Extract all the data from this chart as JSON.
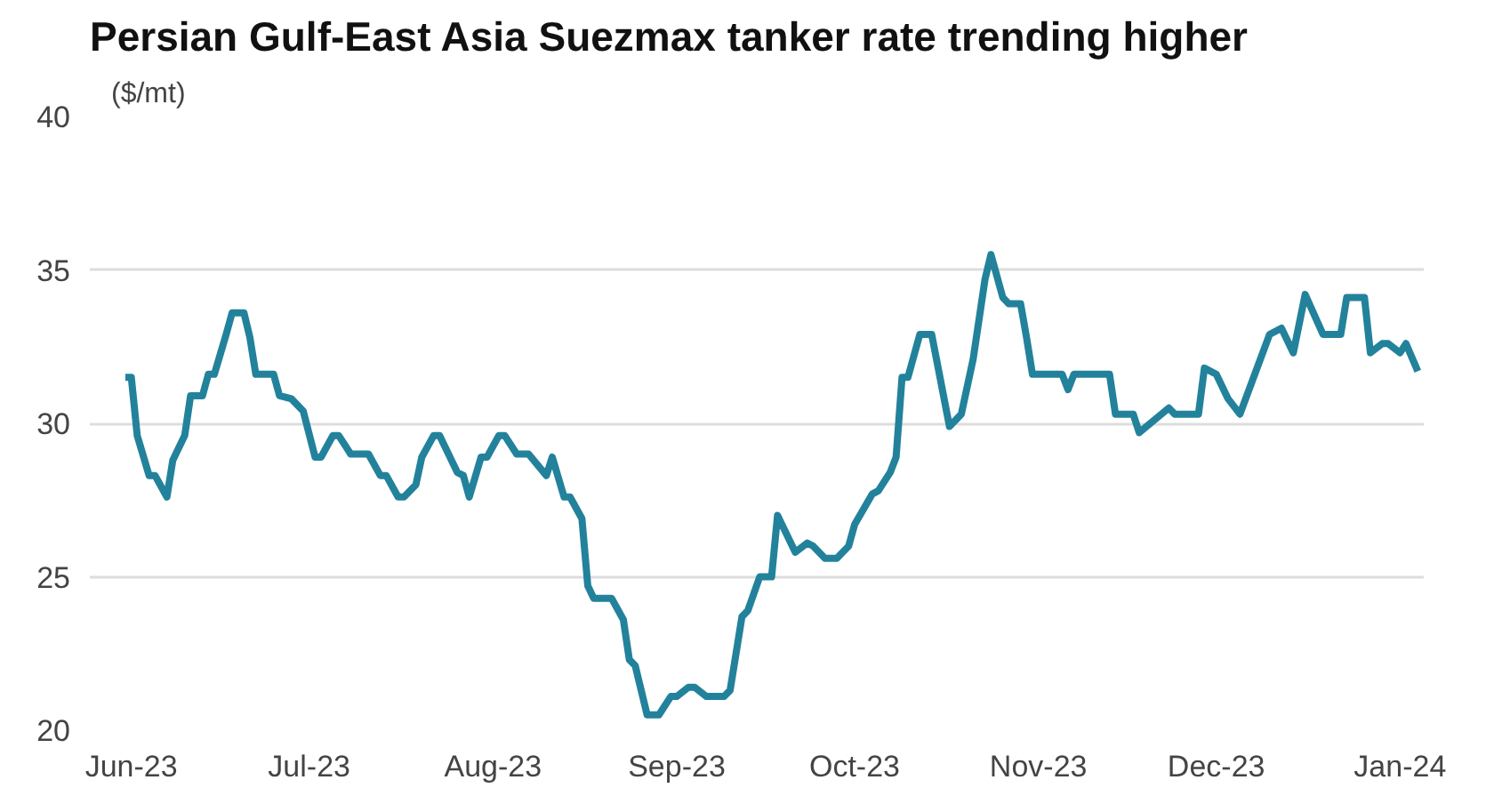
{
  "chart_data": {
    "type": "line",
    "title": "Persian Gulf-East Asia Suezmax tanker rate trending higher",
    "ylabel": "($/mt)",
    "x": [
      "2023-05-31",
      "2023-06-01",
      "2023-06-02",
      "2023-06-04",
      "2023-06-05",
      "2023-06-07",
      "2023-06-08",
      "2023-06-10",
      "2023-06-11",
      "2023-06-13",
      "2023-06-14",
      "2023-06-15",
      "2023-06-17",
      "2023-06-18",
      "2023-06-20",
      "2023-06-21",
      "2023-06-22",
      "2023-06-25",
      "2023-06-26",
      "2023-06-28",
      "2023-06-30",
      "2023-07-02",
      "2023-07-03",
      "2023-07-05",
      "2023-07-06",
      "2023-07-08",
      "2023-07-11",
      "2023-07-13",
      "2023-07-14",
      "2023-07-16",
      "2023-07-17",
      "2023-07-19",
      "2023-07-20",
      "2023-07-22",
      "2023-07-23",
      "2023-07-26",
      "2023-07-27",
      "2023-07-28",
      "2023-07-30",
      "2023-07-31",
      "2023-08-02",
      "2023-08-03",
      "2023-08-05",
      "2023-08-07",
      "2023-08-10",
      "2023-08-11",
      "2023-08-13",
      "2023-08-14",
      "2023-08-16",
      "2023-08-17",
      "2023-08-18",
      "2023-08-21",
      "2023-08-23",
      "2023-08-24",
      "2023-08-25",
      "2023-08-27",
      "2023-08-29",
      "2023-08-31",
      "2023-09-01",
      "2023-09-03",
      "2023-09-04",
      "2023-09-06",
      "2023-09-09",
      "2023-09-10",
      "2023-09-12",
      "2023-09-13",
      "2023-09-15",
      "2023-09-17",
      "2023-09-18",
      "2023-09-21",
      "2023-09-23",
      "2023-09-24",
      "2023-09-26",
      "2023-09-28",
      "2023-09-30",
      "2023-10-01",
      "2023-10-04",
      "2023-10-05",
      "2023-10-07",
      "2023-10-08",
      "2023-10-09",
      "2023-10-10",
      "2023-10-12",
      "2023-10-14",
      "2023-10-17",
      "2023-10-19",
      "2023-10-21",
      "2023-10-23",
      "2023-10-24",
      "2023-10-26",
      "2023-10-27",
      "2023-10-29",
      "2023-10-30",
      "2023-10-31",
      "2023-11-05",
      "2023-11-06",
      "2023-11-07",
      "2023-11-13",
      "2023-11-14",
      "2023-11-17",
      "2023-11-18",
      "2023-11-23",
      "2023-11-24",
      "2023-11-28",
      "2023-11-29",
      "2023-12-01",
      "2023-12-03",
      "2023-12-05",
      "2023-12-10",
      "2023-12-12",
      "2023-12-14",
      "2023-12-16",
      "2023-12-19",
      "2023-12-22",
      "2023-12-23",
      "2023-12-26",
      "2023-12-27",
      "2023-12-29",
      "2023-12-30",
      "2024-01-01",
      "2024-01-02",
      "2024-01-04"
    ],
    "series": [
      {
        "color": "#23829b",
        "values": [
          31.5,
          31.5,
          29.6,
          28.3,
          28.3,
          27.6,
          28.8,
          29.6,
          30.9,
          30.9,
          31.6,
          31.6,
          32.9,
          33.6,
          33.6,
          32.8,
          31.6,
          31.6,
          30.9,
          30.8,
          30.4,
          28.9,
          28.9,
          29.6,
          29.6,
          29.0,
          29.0,
          28.3,
          28.3,
          27.6,
          27.6,
          28.0,
          28.9,
          29.6,
          29.6,
          28.4,
          28.3,
          27.6,
          28.9,
          28.9,
          29.6,
          29.6,
          29.0,
          29.0,
          28.3,
          28.9,
          27.6,
          27.6,
          26.9,
          24.7,
          24.3,
          24.3,
          23.6,
          22.3,
          22.1,
          20.5,
          20.5,
          21.1,
          21.1,
          21.4,
          21.4,
          21.1,
          21.1,
          21.3,
          23.7,
          23.9,
          25.0,
          25.0,
          27.0,
          25.8,
          26.1,
          26.0,
          25.6,
          25.6,
          26.0,
          26.7,
          27.7,
          27.8,
          28.4,
          28.9,
          31.5,
          31.5,
          32.9,
          32.9,
          29.9,
          30.3,
          32.1,
          34.7,
          35.5,
          34.1,
          33.9,
          33.9,
          32.8,
          31.6,
          31.6,
          31.1,
          31.6,
          31.6,
          30.3,
          30.3,
          29.7,
          30.5,
          30.3,
          30.3,
          31.8,
          31.6,
          30.8,
          30.3,
          32.9,
          33.1,
          32.3,
          34.2,
          32.9,
          32.9,
          34.1,
          34.1,
          32.3,
          32.6,
          32.6,
          32.3,
          32.6,
          31.7
        ]
      }
    ],
    "xlim": [
      "2023-05-25",
      "2024-01-05"
    ],
    "xticks": [
      {
        "value": "2023-06-01",
        "label": "Jun-23"
      },
      {
        "value": "2023-07-01",
        "label": "Jul-23"
      },
      {
        "value": "2023-08-01",
        "label": "Aug-23"
      },
      {
        "value": "2023-09-01",
        "label": "Sep-23"
      },
      {
        "value": "2023-10-01",
        "label": "Oct-23"
      },
      {
        "value": "2023-11-01",
        "label": "Nov-23"
      },
      {
        "value": "2023-12-01",
        "label": "Dec-23"
      },
      {
        "value": "2024-01-01",
        "label": "Jan-24"
      }
    ],
    "ylim": [
      20,
      40
    ],
    "yticks": [
      20,
      25,
      30,
      35,
      40
    ],
    "grid": "y",
    "marker": "none",
    "line_style": "solid"
  }
}
